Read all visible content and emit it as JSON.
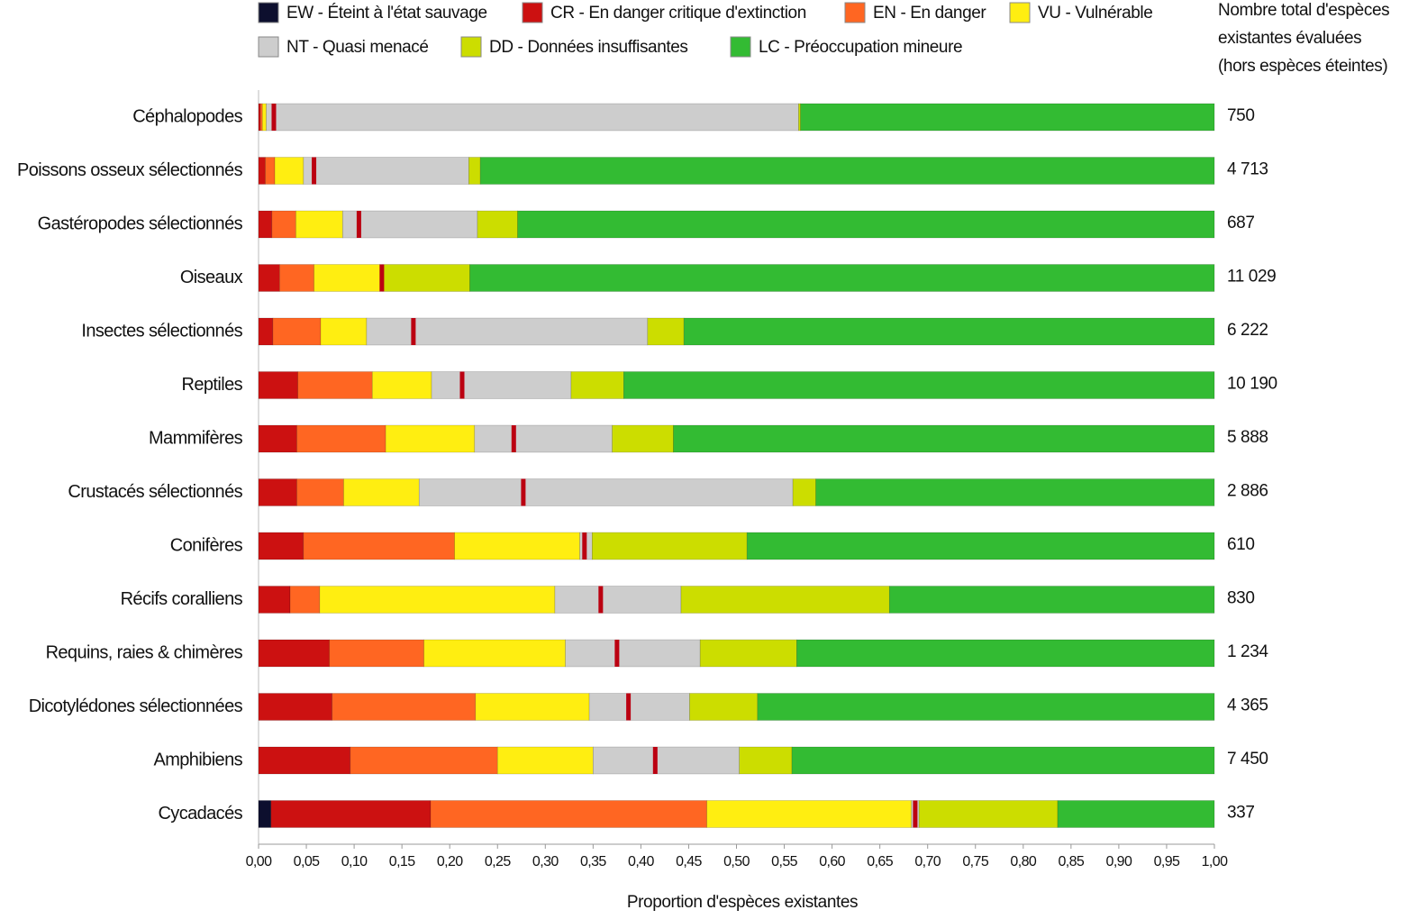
{
  "chart_data": {
    "type": "bar",
    "orientation": "horizontal",
    "stacked": true,
    "xlabel": "Proportion d'espèces existantes",
    "categories": [
      "Céphalopodes",
      "Poissons osseux sélectionnés",
      "Gastéropodes sélectionnés",
      "Oiseaux",
      "Insectes sélectionnés",
      "Reptiles",
      "Mammifères",
      "Crustacés sélectionnés",
      "Conifères",
      "Récifs coralliens",
      "Requins, raies & chimères",
      "Dicotylédones sélectionnées",
      "Amphibiens",
      "Cycadacés"
    ],
    "series": [
      {
        "name": "EW - Éteint à l'état sauvage",
        "color": "#0d0f2e",
        "values": [
          0,
          0,
          0,
          0,
          0,
          0,
          0,
          0,
          0,
          0,
          0,
          0,
          0,
          0.013
        ]
      },
      {
        "name": "CR - En danger critique d'extinction",
        "color": "#cc1111",
        "values": [
          0.002,
          0.007,
          0.014,
          0.022,
          0.015,
          0.041,
          0.04,
          0.04,
          0.047,
          0.033,
          0.074,
          0.077,
          0.096,
          0.167
        ]
      },
      {
        "name": "EN - En danger",
        "color": "#ff6622",
        "values": [
          0.002,
          0.01,
          0.025,
          0.036,
          0.05,
          0.078,
          0.093,
          0.049,
          0.158,
          0.031,
          0.099,
          0.15,
          0.154,
          0.289
        ]
      },
      {
        "name": "VU - Vulnérable",
        "color": "#ffee11",
        "values": [
          0.004,
          0.03,
          0.049,
          0.069,
          0.048,
          0.062,
          0.093,
          0.079,
          0.131,
          0.246,
          0.148,
          0.119,
          0.1,
          0.214
        ]
      },
      {
        "name": "NT - Quasi menacé",
        "color": "#cdcdcd",
        "values": [
          0.557,
          0.173,
          0.141,
          0.003,
          0.294,
          0.146,
          0.144,
          0.391,
          0.013,
          0.132,
          0.141,
          0.105,
          0.153,
          0.008
        ]
      },
      {
        "name": "DD - Données insuffisantes",
        "color": "#ccdd00",
        "values": [
          0.002,
          0.012,
          0.042,
          0.091,
          0.038,
          0.055,
          0.064,
          0.024,
          0.162,
          0.218,
          0.101,
          0.071,
          0.055,
          0.145
        ]
      },
      {
        "name": "LC - Préoccupation mineure",
        "color": "#33bb33",
        "values": [
          0.433,
          0.768,
          0.729,
          0.779,
          0.555,
          0.618,
          0.566,
          0.417,
          0.489,
          0.34,
          0.437,
          0.478,
          0.442,
          0.164
        ]
      }
    ],
    "marks": {
      "color": "#bb0011",
      "values": [
        0.016,
        0.058,
        0.105,
        0.129,
        0.162,
        0.213,
        0.267,
        0.277,
        0.341,
        0.358,
        0.375,
        0.387,
        0.415,
        0.687
      ]
    },
    "totals": {
      "header": [
        "Nombre total d'espèces",
        "existantes évaluées",
        "(hors espèces éteintes)"
      ],
      "values": [
        750,
        4713,
        687,
        11029,
        6222,
        10190,
        5888,
        2886,
        610,
        830,
        1234,
        4365,
        7450,
        337
      ],
      "value_labels": [
        "750",
        "4 713",
        "687",
        "11 029",
        "6 222",
        "10 190",
        "5 888",
        "2 886",
        "610",
        "830",
        "1 234",
        "4 365",
        "7 450",
        "337"
      ]
    },
    "xlim": [
      0,
      1
    ],
    "xticks": [
      {
        "value": 0,
        "label": "0,00"
      },
      {
        "value": 0.05,
        "label": "0,05"
      },
      {
        "value": 0.1,
        "label": "0,10"
      },
      {
        "value": 0.15,
        "label": "0,15"
      },
      {
        "value": 0.2,
        "label": "0,20"
      },
      {
        "value": 0.25,
        "label": "0,25"
      },
      {
        "value": 0.3,
        "label": "0,30"
      },
      {
        "value": 0.35,
        "label": "0,35"
      },
      {
        "value": 0.4,
        "label": "0,40"
      },
      {
        "value": 0.45,
        "label": "0,45"
      },
      {
        "value": 0.5,
        "label": "0,50"
      },
      {
        "value": 0.55,
        "label": "0,55"
      },
      {
        "value": 0.6,
        "label": "0,60"
      },
      {
        "value": 0.65,
        "label": "0,65"
      },
      {
        "value": 0.7,
        "label": "0,70"
      },
      {
        "value": 0.75,
        "label": "0,75"
      },
      {
        "value": 0.8,
        "label": "0,80"
      },
      {
        "value": 0.85,
        "label": "0,85"
      },
      {
        "value": 0.9,
        "label": "0,90"
      },
      {
        "value": 0.95,
        "label": "0,95"
      },
      {
        "value": 1,
        "label": "1,00"
      }
    ]
  }
}
